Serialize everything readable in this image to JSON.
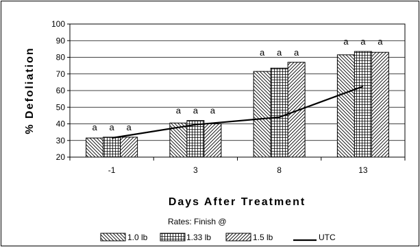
{
  "chart_data": {
    "type": "bar",
    "categories": [
      "-1",
      "3",
      "8",
      "13"
    ],
    "xlabel": "Days After Treatment",
    "ylabel": "% Defoliation",
    "ylim": [
      20,
      100
    ],
    "yticks": [
      20,
      30,
      40,
      50,
      60,
      70,
      80,
      90,
      100
    ],
    "grid": true,
    "series": [
      {
        "name": "1.0 lb",
        "type": "bar",
        "pattern": "diagonal-down",
        "values": [
          31.5,
          40.5,
          71.5,
          81.5
        ]
      },
      {
        "name": "1.33 lb",
        "type": "bar",
        "pattern": "grid",
        "values": [
          32,
          42,
          73.5,
          83.5
        ]
      },
      {
        "name": "1.5 lb",
        "type": "bar",
        "pattern": "diagonal-up",
        "values": [
          32,
          40,
          77,
          83
        ]
      },
      {
        "name": "UTC",
        "type": "line",
        "color": "#000000",
        "values": [
          31.5,
          39.5,
          44,
          62.5
        ]
      }
    ],
    "annotations": [
      [
        "a",
        "a",
        "a"
      ],
      [
        "a",
        "a",
        "a"
      ],
      [
        "a",
        "a",
        "a"
      ],
      [
        "a",
        "a",
        "a"
      ]
    ],
    "legend": {
      "title": "Rates: Finish @",
      "position": "bottom"
    }
  }
}
